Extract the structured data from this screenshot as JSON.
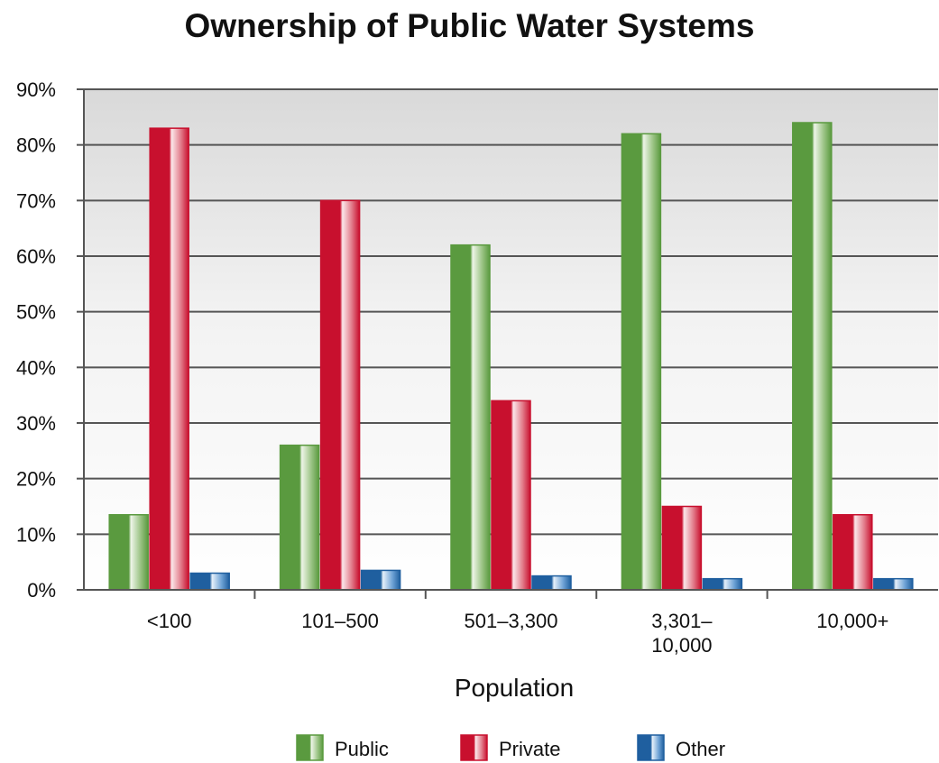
{
  "chart_data": {
    "type": "bar",
    "title": "Ownership of Public Water Systems",
    "xlabel": "Population",
    "ylabel": "",
    "categories": [
      [
        "<100"
      ],
      [
        "101–500"
      ],
      [
        "501–3,300"
      ],
      [
        "3,301–",
        "10,000"
      ],
      [
        "10,000+"
      ]
    ],
    "series": [
      {
        "name": "Public",
        "values": [
          13.5,
          26,
          62,
          82,
          84
        ],
        "color": "#5a9a3f"
      },
      {
        "name": "Private",
        "values": [
          83,
          70,
          34,
          15,
          13.5
        ],
        "color": "#c8102e"
      },
      {
        "name": "Other",
        "values": [
          3,
          3.5,
          2.5,
          2,
          2
        ],
        "color": "#1f5f9f"
      }
    ],
    "yticks": [
      "0%",
      "10%",
      "20%",
      "30%",
      "40%",
      "50%",
      "60%",
      "70%",
      "80%",
      "90%"
    ],
    "ylim": [
      0,
      90
    ],
    "grid": true,
    "legend_position": "bottom"
  }
}
